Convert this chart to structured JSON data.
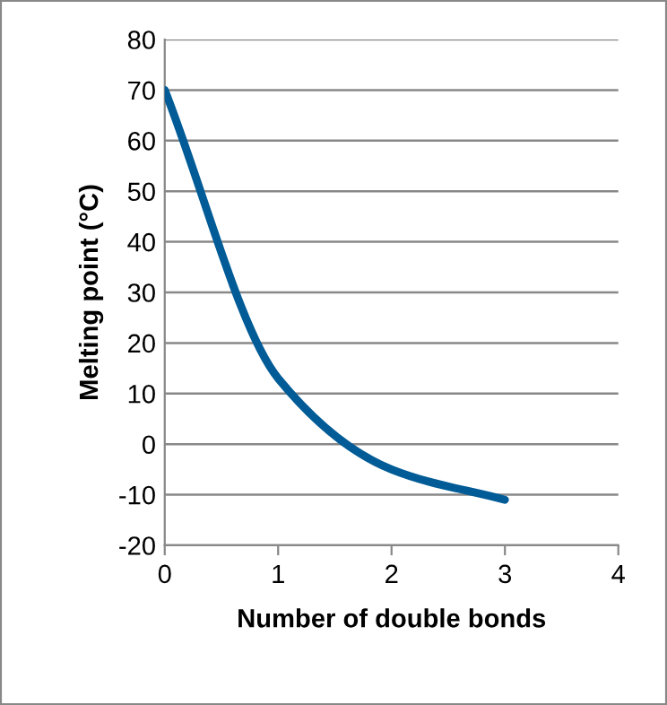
{
  "chart_data": {
    "type": "line",
    "xlabel": "Number of double bonds",
    "ylabel": "Melting point (°C)",
    "x": [
      0,
      1,
      2,
      3
    ],
    "series": [
      {
        "color": "#005b96",
        "values": [
          70,
          13,
          -5,
          -11
        ]
      }
    ],
    "xlim": [
      0,
      4
    ],
    "xticks": [
      0,
      1,
      2,
      3,
      4
    ],
    "ylim": [
      -20,
      80
    ],
    "yticks": [
      -20,
      -10,
      0,
      10,
      20,
      30,
      40,
      50,
      60,
      70,
      80
    ],
    "grid": "y",
    "marker": "none",
    "line_style": "solid"
  }
}
